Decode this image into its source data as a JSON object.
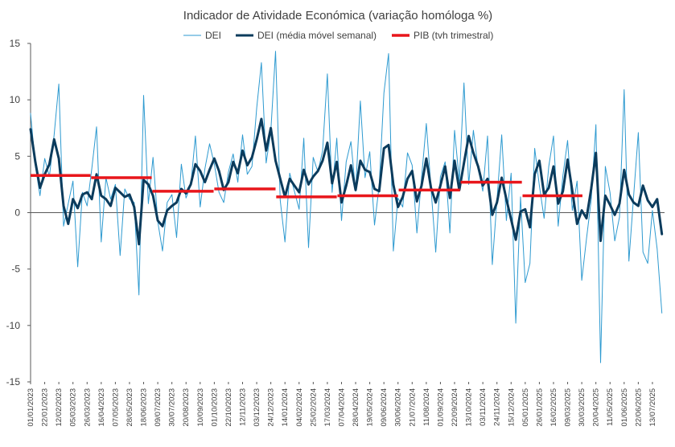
{
  "chart_data": {
    "type": "line",
    "title": "Indicador de Atividade Económica (variação homóloga %)",
    "xlabel": "",
    "ylabel": "",
    "ylim": [
      -15,
      15
    ],
    "y_ticks": [
      15,
      10,
      5,
      0,
      -5,
      -10,
      -15
    ],
    "x_range": [
      "2023-01-01",
      "2025-07-31"
    ],
    "x_tick_labels": [
      "01/01/2023",
      "22/01/2023",
      "12/02/2023",
      "05/03/2023",
      "26/03/2023",
      "16/04/2023",
      "07/05/2023",
      "28/05/2023",
      "18/06/2023",
      "09/07/2023",
      "30/07/2023",
      "20/08/2023",
      "10/09/2023",
      "01/10/2023",
      "22/10/2023",
      "12/11/2023",
      "03/12/2023",
      "24/12/2023",
      "14/01/2024",
      "04/02/2024",
      "25/02/2024",
      "17/03/2024",
      "07/04/2024",
      "28/04/2024",
      "19/05/2024",
      "09/06/2024",
      "30/06/2024",
      "21/07/2024",
      "11/08/2024",
      "01/09/2024",
      "22/09/2024",
      "13/10/2024",
      "03/11/2024",
      "24/11/2024",
      "15/12/2024",
      "05/01/2025",
      "26/01/2025",
      "16/02/2025",
      "09/03/2025",
      "30/03/2025",
      "20/04/2025",
      "11/05/2025",
      "01/06/2025",
      "22/06/2025",
      "13/07/2025"
    ],
    "grid": false,
    "legend_position": "top",
    "series": [
      {
        "name": "DEI",
        "style": "thin-line",
        "color": "#2E9AD0",
        "x": [
          "2023-01-01",
          "2023-01-08",
          "2023-01-15",
          "2023-01-22",
          "2023-01-29",
          "2023-02-05",
          "2023-02-12",
          "2023-02-19",
          "2023-02-26",
          "2023-03-05",
          "2023-03-12",
          "2023-03-19",
          "2023-03-26",
          "2023-04-02",
          "2023-04-09",
          "2023-04-16",
          "2023-04-23",
          "2023-04-30",
          "2023-05-07",
          "2023-05-14",
          "2023-05-21",
          "2023-05-28",
          "2023-06-04",
          "2023-06-11",
          "2023-06-18",
          "2023-06-25",
          "2023-07-02",
          "2023-07-09",
          "2023-07-16",
          "2023-07-23",
          "2023-07-30",
          "2023-08-06",
          "2023-08-13",
          "2023-08-20",
          "2023-08-27",
          "2023-09-03",
          "2023-09-10",
          "2023-09-17",
          "2023-09-24",
          "2023-10-01",
          "2023-10-08",
          "2023-10-15",
          "2023-10-22",
          "2023-10-29",
          "2023-11-05",
          "2023-11-12",
          "2023-11-19",
          "2023-11-26",
          "2023-12-03",
          "2023-12-10",
          "2023-12-17",
          "2023-12-24",
          "2023-12-31",
          "2024-01-07",
          "2024-01-14",
          "2024-01-21",
          "2024-01-28",
          "2024-02-04",
          "2024-02-11",
          "2024-02-18",
          "2024-02-25",
          "2024-03-03",
          "2024-03-10",
          "2024-03-17",
          "2024-03-24",
          "2024-03-31",
          "2024-04-07",
          "2024-04-14",
          "2024-04-21",
          "2024-04-28",
          "2024-05-05",
          "2024-05-12",
          "2024-05-19",
          "2024-05-26",
          "2024-06-02",
          "2024-06-09",
          "2024-06-16",
          "2024-06-23",
          "2024-06-30",
          "2024-07-07",
          "2024-07-14",
          "2024-07-21",
          "2024-07-28",
          "2024-08-04",
          "2024-08-11",
          "2024-08-18",
          "2024-08-25",
          "2024-09-01",
          "2024-09-08",
          "2024-09-15",
          "2024-09-22",
          "2024-09-29",
          "2024-10-06",
          "2024-10-13",
          "2024-10-20",
          "2024-10-27",
          "2024-11-03",
          "2024-11-10",
          "2024-11-17",
          "2024-11-24",
          "2024-12-01",
          "2024-12-08",
          "2024-12-15",
          "2024-12-22",
          "2024-12-29",
          "2025-01-05",
          "2025-01-12",
          "2025-01-19",
          "2025-01-26",
          "2025-02-02",
          "2025-02-09",
          "2025-02-16",
          "2025-02-23",
          "2025-03-02",
          "2025-03-09",
          "2025-03-16",
          "2025-03-23",
          "2025-03-30",
          "2025-04-06",
          "2025-04-13",
          "2025-04-20",
          "2025-04-27",
          "2025-05-04",
          "2025-05-11",
          "2025-05-18",
          "2025-05-25",
          "2025-06-01",
          "2025-06-08",
          "2025-06-15",
          "2025-06-22",
          "2025-06-29",
          "2025-07-06",
          "2025-07-13",
          "2025-07-20",
          "2025-07-27"
        ],
        "values": [
          8.8,
          4.2,
          1.5,
          4.8,
          3.2,
          6.9,
          11.4,
          -1.2,
          0.8,
          2.8,
          -4.8,
          1.8,
          0.6,
          3.9,
          7.6,
          -2.6,
          3.1,
          1.2,
          2.5,
          -3.8,
          2.1,
          1.2,
          0.9,
          -7.3,
          10.4,
          0.8,
          4.9,
          -0.8,
          -3.4,
          0.9,
          1.6,
          -2.2,
          4.3,
          1.3,
          2.4,
          6.8,
          0.5,
          3.9,
          6.1,
          4.3,
          1.8,
          0.9,
          3.6,
          5.2,
          2.7,
          6.9,
          3.4,
          4.1,
          9.3,
          13.3,
          4.4,
          7.2,
          14.3,
          1.1,
          -2.6,
          3.5,
          1.9,
          0.3,
          6.6,
          -3.1,
          4.9,
          3.6,
          5.5,
          12.3,
          1.8,
          6.6,
          -0.7,
          4.5,
          6.3,
          1.9,
          9.9,
          3.1,
          5.4,
          -1.1,
          2.4,
          10.6,
          14.1,
          -3.4,
          1.3,
          0.5,
          5.3,
          4.2,
          -1.8,
          3.1,
          7.9,
          2.2,
          -3.5,
          3.2,
          4.5,
          -1.8,
          7.3,
          2.8,
          11.5,
          2.5,
          7.3,
          3.9,
          1.9,
          6.8,
          -4.6,
          1.1,
          6.9,
          -0.7,
          3.5,
          -9.8,
          1.4,
          -6.2,
          -4.5,
          5.7,
          2.4,
          -0.5,
          4.1,
          6.8,
          -1.2,
          3.3,
          6.4,
          0.2,
          2.8,
          -6.0,
          -2.3,
          1.1,
          7.8,
          -13.3,
          4.1,
          1.8,
          -2.5,
          -0.4,
          10.9,
          -4.3,
          1.4,
          7.1,
          -3.5,
          -4.5,
          0.2,
          -3.2,
          -8.9
        ]
      },
      {
        "name": "DEI (média móvel semanal)",
        "style": "thick-line",
        "color": "#0B3B5C",
        "x": [
          "2023-01-01",
          "2023-01-08",
          "2023-01-15",
          "2023-01-22",
          "2023-01-29",
          "2023-02-05",
          "2023-02-12",
          "2023-02-19",
          "2023-02-26",
          "2023-03-05",
          "2023-03-12",
          "2023-03-19",
          "2023-03-26",
          "2023-04-02",
          "2023-04-09",
          "2023-04-16",
          "2023-04-23",
          "2023-04-30",
          "2023-05-07",
          "2023-05-14",
          "2023-05-21",
          "2023-05-28",
          "2023-06-04",
          "2023-06-11",
          "2023-06-18",
          "2023-06-25",
          "2023-07-02",
          "2023-07-09",
          "2023-07-16",
          "2023-07-23",
          "2023-07-30",
          "2023-08-06",
          "2023-08-13",
          "2023-08-20",
          "2023-08-27",
          "2023-09-03",
          "2023-09-10",
          "2023-09-17",
          "2023-09-24",
          "2023-10-01",
          "2023-10-08",
          "2023-10-15",
          "2023-10-22",
          "2023-10-29",
          "2023-11-05",
          "2023-11-12",
          "2023-11-19",
          "2023-11-26",
          "2023-12-03",
          "2023-12-10",
          "2023-12-17",
          "2023-12-24",
          "2023-12-31",
          "2024-01-07",
          "2024-01-14",
          "2024-01-21",
          "2024-01-28",
          "2024-02-04",
          "2024-02-11",
          "2024-02-18",
          "2024-02-25",
          "2024-03-03",
          "2024-03-10",
          "2024-03-17",
          "2024-03-24",
          "2024-03-31",
          "2024-04-07",
          "2024-04-14",
          "2024-04-21",
          "2024-04-28",
          "2024-05-05",
          "2024-05-12",
          "2024-05-19",
          "2024-05-26",
          "2024-06-02",
          "2024-06-09",
          "2024-06-16",
          "2024-06-23",
          "2024-06-30",
          "2024-07-07",
          "2024-07-14",
          "2024-07-21",
          "2024-07-28",
          "2024-08-04",
          "2024-08-11",
          "2024-08-18",
          "2024-08-25",
          "2024-09-01",
          "2024-09-08",
          "2024-09-15",
          "2024-09-22",
          "2024-09-29",
          "2024-10-06",
          "2024-10-13",
          "2024-10-20",
          "2024-10-27",
          "2024-11-03",
          "2024-11-10",
          "2024-11-17",
          "2024-11-24",
          "2024-12-01",
          "2024-12-08",
          "2024-12-15",
          "2024-12-22",
          "2024-12-29",
          "2025-01-05",
          "2025-01-12",
          "2025-01-19",
          "2025-01-26",
          "2025-02-02",
          "2025-02-09",
          "2025-02-16",
          "2025-02-23",
          "2025-03-02",
          "2025-03-09",
          "2025-03-16",
          "2025-03-23",
          "2025-03-30",
          "2025-04-06",
          "2025-04-13",
          "2025-04-20",
          "2025-04-27",
          "2025-05-04",
          "2025-05-11",
          "2025-05-18",
          "2025-05-25",
          "2025-06-01",
          "2025-06-08",
          "2025-06-15",
          "2025-06-22",
          "2025-06-29",
          "2025-07-06",
          "2025-07-13",
          "2025-07-20",
          "2025-07-27"
        ],
        "values": [
          7.4,
          4.5,
          2.2,
          3.4,
          4.3,
          6.5,
          4.8,
          0.6,
          -1.0,
          1.2,
          0.4,
          1.6,
          1.8,
          1.2,
          3.4,
          1.5,
          1.2,
          0.6,
          2.2,
          1.8,
          1.4,
          1.6,
          0.5,
          -2.8,
          2.9,
          2.5,
          1.5,
          -0.7,
          -1.2,
          0.2,
          0.6,
          0.9,
          2.1,
          1.7,
          2.5,
          4.3,
          3.7,
          2.7,
          3.8,
          4.8,
          3.7,
          2.0,
          2.7,
          4.5,
          3.5,
          5.5,
          4.2,
          4.9,
          6.5,
          8.3,
          5.5,
          7.5,
          4.6,
          3.0,
          1.4,
          3.0,
          2.4,
          1.8,
          3.8,
          2.5,
          3.2,
          3.7,
          4.6,
          6.2,
          2.6,
          4.5,
          0.9,
          2.4,
          4.2,
          2.0,
          4.6,
          3.8,
          3.6,
          2.1,
          1.9,
          5.7,
          6.0,
          2.5,
          0.5,
          1.4,
          3.0,
          3.7,
          1.0,
          2.4,
          4.8,
          2.2,
          0.9,
          2.4,
          4.1,
          1.3,
          4.6,
          2.0,
          4.4,
          6.8,
          5.3,
          4.1,
          2.4,
          3.0,
          -0.2,
          0.9,
          3.1,
          1.2,
          -0.6,
          -2.4,
          0.1,
          0.3,
          -1.3,
          3.4,
          4.6,
          1.6,
          2.2,
          4.1,
          0.8,
          1.9,
          4.7,
          1.9,
          -1.0,
          0.2,
          -0.5,
          2.1,
          5.3,
          -2.5,
          1.5,
          0.7,
          -0.2,
          0.8,
          3.8,
          1.6,
          0.9,
          0.6,
          2.4,
          1.1,
          0.5,
          1.2,
          -1.9
        ]
      },
      {
        "name": "PIB (tvh trimestral)",
        "style": "step",
        "color": "#E8161B",
        "segments": [
          {
            "start": "2023-01-01",
            "end": "2023-03-31",
            "value": 3.3
          },
          {
            "start": "2023-04-01",
            "end": "2023-06-30",
            "value": 3.1
          },
          {
            "start": "2023-07-01",
            "end": "2023-09-30",
            "value": 1.9
          },
          {
            "start": "2023-10-01",
            "end": "2023-12-31",
            "value": 2.1
          },
          {
            "start": "2024-01-01",
            "end": "2024-03-31",
            "value": 1.4
          },
          {
            "start": "2024-04-01",
            "end": "2024-06-30",
            "value": 1.5
          },
          {
            "start": "2024-07-01",
            "end": "2024-09-30",
            "value": 2.0
          },
          {
            "start": "2024-10-01",
            "end": "2024-12-31",
            "value": 2.7
          },
          {
            "start": "2025-01-01",
            "end": "2025-03-31",
            "value": 1.5
          }
        ]
      }
    ]
  }
}
